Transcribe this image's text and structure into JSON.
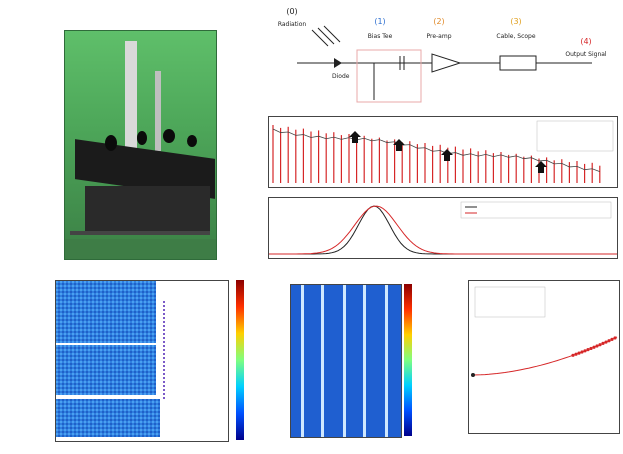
{
  "schematic": {
    "labels": [
      {
        "num": "(0)",
        "text": "Radiation",
        "color": "#222222"
      },
      {
        "num": "(1)",
        "text": "Bias Tee",
        "color": "#2e6fd0"
      },
      {
        "num": "(2)",
        "text": "Pre-amp",
        "color": "#e08a2a"
      },
      {
        "num": "(3)",
        "text": "Cable, Scope",
        "color": "#e0a020"
      },
      {
        "num": "(4)",
        "text": "Output Signal",
        "color": "#d62728"
      }
    ],
    "diode_label": "Diode"
  },
  "colors": {
    "bar_red": "#d62728",
    "curve_black": "#222222",
    "photo_green": "#4ea85a",
    "scatter_red": "#d62728"
  }
}
